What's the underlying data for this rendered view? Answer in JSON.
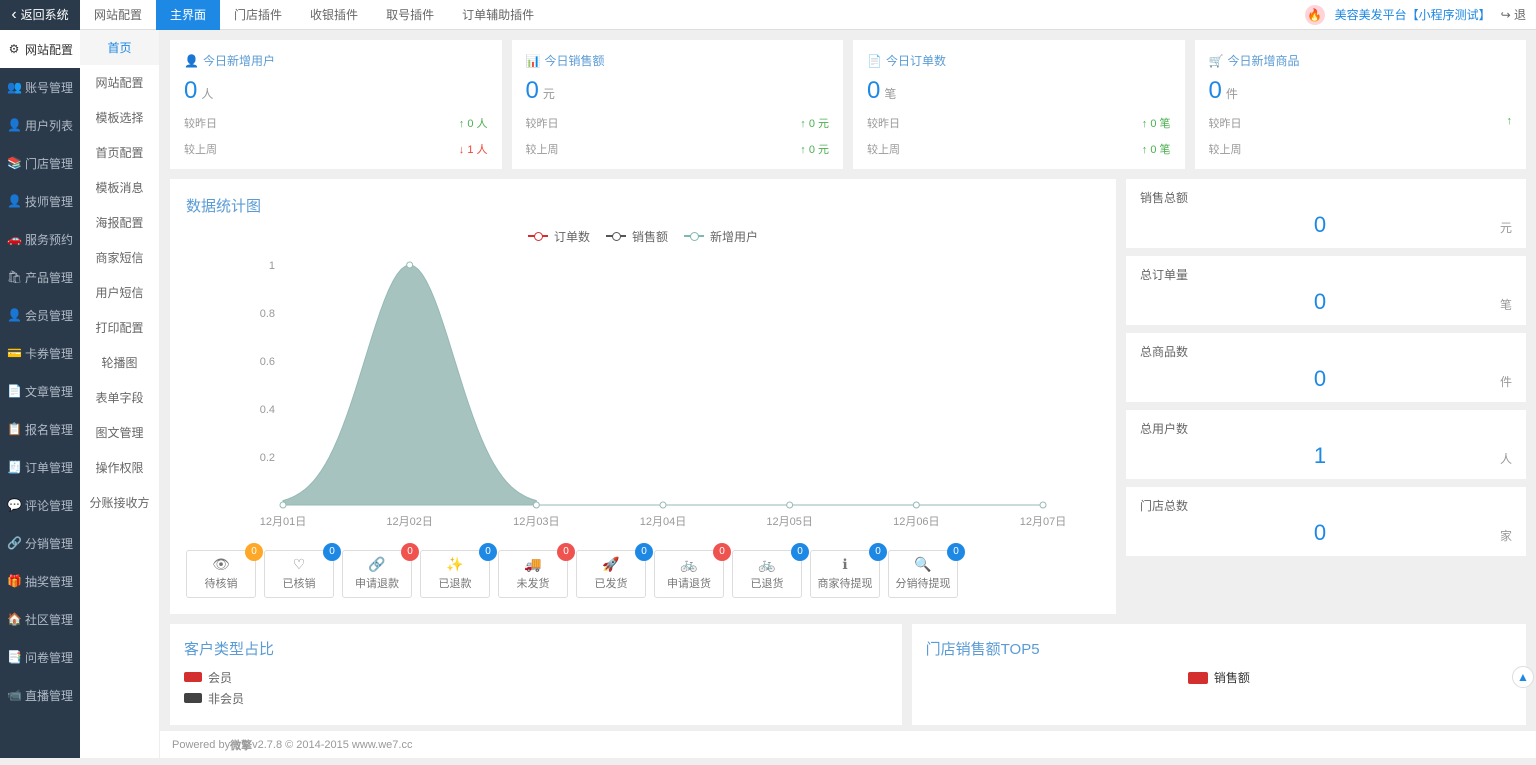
{
  "topbar": {
    "back": "返回系统",
    "tabs": [
      "网站配置",
      "主界面",
      "门店插件",
      "收银插件",
      "取号插件",
      "订单辅助插件"
    ],
    "active_tab": 1,
    "brand": "美容美发平台",
    "brand_suffix": "【小程序测试】",
    "logout": "退"
  },
  "sidebar": {
    "items": [
      {
        "label": "网站配置",
        "ico": "⚙"
      },
      {
        "label": "账号管理",
        "ico": "👥"
      },
      {
        "label": "用户列表",
        "ico": "👤"
      },
      {
        "label": "门店管理",
        "ico": "📚"
      },
      {
        "label": "技师管理",
        "ico": "👤"
      },
      {
        "label": "服务预约",
        "ico": "🚗"
      },
      {
        "label": "产品管理",
        "ico": "🛍"
      },
      {
        "label": "会员管理",
        "ico": "👤"
      },
      {
        "label": "卡券管理",
        "ico": "💳"
      },
      {
        "label": "文章管理",
        "ico": "📄"
      },
      {
        "label": "报名管理",
        "ico": "📋"
      },
      {
        "label": "订单管理",
        "ico": "🧾"
      },
      {
        "label": "评论管理",
        "ico": "💬"
      },
      {
        "label": "分销管理",
        "ico": "🔗"
      },
      {
        "label": "抽奖管理",
        "ico": "🎁"
      },
      {
        "label": "社区管理",
        "ico": "🏠"
      },
      {
        "label": "问卷管理",
        "ico": "📑"
      },
      {
        "label": "直播管理",
        "ico": "📹"
      }
    ],
    "active": 0
  },
  "subnav": {
    "items": [
      "首页",
      "网站配置",
      "模板选择",
      "首页配置",
      "模板消息",
      "海报配置",
      "商家短信",
      "用户短信",
      "打印配置",
      "轮播图",
      "表单字段",
      "图文管理",
      "操作权限",
      "分账接收方"
    ],
    "active": 0
  },
  "summary_cards": [
    {
      "title": "今日新增用户",
      "ico": "👤",
      "value": "0",
      "unit": "人",
      "cmp1_label": "较昨日",
      "cmp1_val": "0 人",
      "cmp1_dir": "up",
      "cmp2_label": "较上周",
      "cmp2_val": "1 人",
      "cmp2_dir": "down"
    },
    {
      "title": "今日销售额",
      "ico": "📊",
      "value": "0",
      "unit": "元",
      "cmp1_label": "较昨日",
      "cmp1_val": "0 元",
      "cmp1_dir": "up",
      "cmp2_label": "较上周",
      "cmp2_val": "0 元",
      "cmp2_dir": "up"
    },
    {
      "title": "今日订单数",
      "ico": "📄",
      "value": "0",
      "unit": "笔",
      "cmp1_label": "较昨日",
      "cmp1_val": "0 笔",
      "cmp1_dir": "up",
      "cmp2_label": "较上周",
      "cmp2_val": "0 笔",
      "cmp2_dir": "up"
    },
    {
      "title": "今日新增商品",
      "ico": "🛒",
      "value": "0",
      "unit": "件",
      "cmp1_label": "较昨日",
      "cmp1_val": "",
      "cmp1_dir": "up",
      "cmp2_label": "较上周",
      "cmp2_val": "",
      "cmp2_dir": ""
    }
  ],
  "chart": {
    "title": "数据统计图",
    "legend": [
      {
        "label": "订单数",
        "color": "#d32f2f"
      },
      {
        "label": "销售额",
        "color": "#555"
      },
      {
        "label": "新增用户",
        "color": "#7fb8b3"
      }
    ],
    "x_labels": [
      "12月01日",
      "12月02日",
      "12月03日",
      "12月04日",
      "12月05日",
      "12月06日",
      "12月07日"
    ],
    "y_ticks": [
      0.2,
      0.4,
      0.6,
      0.8,
      1
    ],
    "ylim": [
      0,
      1
    ],
    "area_color": "#96b9b5",
    "area_fill_opacity": 0.85,
    "grid": false,
    "series_new_users": [
      0,
      1,
      0,
      0,
      0,
      0,
      0
    ]
  },
  "totals": [
    {
      "label": "销售总额",
      "value": "0",
      "unit": "元"
    },
    {
      "label": "总订单量",
      "value": "0",
      "unit": "笔"
    },
    {
      "label": "总商品数",
      "value": "0",
      "unit": "件"
    },
    {
      "label": "总用户数",
      "value": "1",
      "unit": "人"
    },
    {
      "label": "门店总数",
      "value": "0",
      "unit": "家"
    }
  ],
  "status_buttons": [
    {
      "label": "待核销",
      "ico": "👁",
      "badge": "0",
      "color": "orange"
    },
    {
      "label": "已核销",
      "ico": "♡",
      "badge": "0",
      "color": "blue"
    },
    {
      "label": "申请退款",
      "ico": "🔗",
      "badge": "0",
      "color": "red"
    },
    {
      "label": "已退款",
      "ico": "✨",
      "badge": "0",
      "color": "blue"
    },
    {
      "label": "未发货",
      "ico": "🚚",
      "badge": "0",
      "color": "red"
    },
    {
      "label": "已发货",
      "ico": "🚀",
      "badge": "0",
      "color": "blue"
    },
    {
      "label": "申请退货",
      "ico": "🚲",
      "badge": "0",
      "color": "red"
    },
    {
      "label": "已退货",
      "ico": "🚲",
      "badge": "0",
      "color": "blue"
    },
    {
      "label": "商家待提现",
      "ico": "ℹ",
      "badge": "0",
      "color": "blue"
    },
    {
      "label": "分销待提现",
      "ico": "🔍",
      "badge": "0",
      "color": "blue"
    }
  ],
  "customer_panel": {
    "title": "客户类型占比",
    "legend": [
      {
        "label": "会员",
        "color": "#d32f2f"
      },
      {
        "label": "非会员",
        "color": "#424242"
      }
    ]
  },
  "top5_panel": {
    "title": "门店销售额TOP5",
    "legend_label": "销售额",
    "legend_color": "#d32f2f"
  },
  "footer": {
    "powered": "Powered by ",
    "brand": "微擎",
    "version": " v2.7.8 © 2014-2015 www.we7.cc"
  }
}
